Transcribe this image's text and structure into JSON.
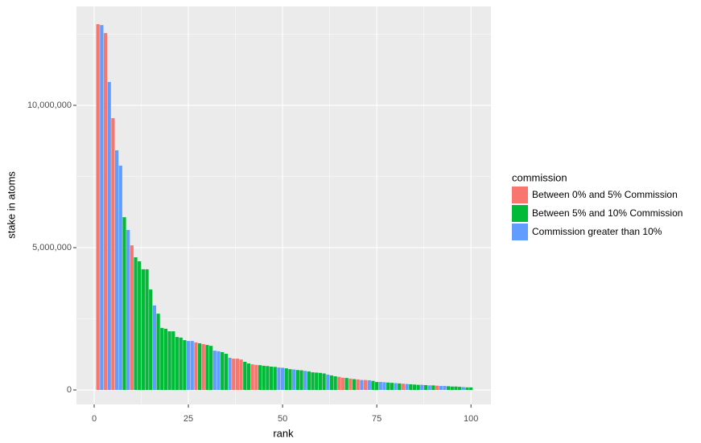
{
  "chart_data": {
    "type": "bar",
    "x_label": "rank",
    "y_label": "stake in atoms",
    "legend_title": "commission",
    "legend_position": "right",
    "grid": true,
    "bar_width": 0.9,
    "xlim": [
      -4.7,
      105.3
    ],
    "ylim": [
      -508000,
      13475000
    ],
    "xticks": [
      0,
      25,
      50,
      75,
      100
    ],
    "minor_xticks": [
      12.5,
      37.5,
      62.5,
      87.5
    ],
    "yticks": [
      0,
      {
        "value": 5000000,
        "label": "5,000,000"
      },
      {
        "value": 10000000,
        "label": "10,000,000"
      }
    ],
    "minor_yticks": [
      2500000,
      7500000,
      12500000
    ],
    "series": [
      {
        "name": "Between 0% and 5% Commission",
        "color": "#f8766d",
        "x": [
          1,
          3,
          5,
          10,
          27,
          29,
          37,
          38,
          39,
          42,
          43,
          65,
          66,
          68,
          70,
          72,
          82,
          91
        ],
        "values": [
          12850000,
          12540000,
          9550000,
          5080000,
          1670000,
          1610000,
          1100000,
          1100000,
          1070000,
          900000,
          880000,
          460000,
          430000,
          400000,
          370000,
          350000,
          220000,
          150000
        ]
      },
      {
        "name": "Between 5% and 10% Commission",
        "color": "#00ba38",
        "x": [
          8,
          11,
          12,
          13,
          14,
          15,
          17,
          18,
          19,
          20,
          21,
          22,
          23,
          24,
          28,
          30,
          31,
          34,
          35,
          40,
          41,
          44,
          45,
          46,
          47,
          48,
          51,
          52,
          54,
          55,
          57,
          58,
          59,
          60,
          61,
          63,
          64,
          67,
          69,
          74,
          75,
          78,
          79,
          81,
          84,
          85,
          86,
          88,
          90,
          94,
          95,
          96,
          97,
          99,
          100
        ],
        "values": [
          6070000,
          4660000,
          4520000,
          4240000,
          4240000,
          3530000,
          2680000,
          2180000,
          2150000,
          2060000,
          2060000,
          1860000,
          1840000,
          1750000,
          1640000,
          1580000,
          1550000,
          1330000,
          1270000,
          990000,
          930000,
          870000,
          850000,
          840000,
          820000,
          810000,
          760000,
          730000,
          700000,
          690000,
          650000,
          620000,
          610000,
          600000,
          580000,
          510000,
          480000,
          420000,
          380000,
          320000,
          280000,
          260000,
          250000,
          230000,
          200000,
          190000,
          180000,
          170000,
          160000,
          130000,
          120000,
          120000,
          110000,
          90000,
          90000
        ]
      },
      {
        "name": "Commission greater than 10%",
        "color": "#619cff",
        "x": [
          2,
          4,
          6,
          7,
          9,
          16,
          25,
          26,
          32,
          33,
          36,
          49,
          50,
          53,
          56,
          62,
          71,
          73,
          76,
          77,
          80,
          83,
          87,
          89,
          92,
          93,
          98
        ],
        "values": [
          12820000,
          10820000,
          8420000,
          7880000,
          5620000,
          2970000,
          1720000,
          1720000,
          1380000,
          1360000,
          1130000,
          790000,
          780000,
          720000,
          670000,
          540000,
          350000,
          340000,
          280000,
          270000,
          240000,
          210000,
          180000,
          160000,
          140000,
          140000,
          100000
        ]
      }
    ]
  }
}
